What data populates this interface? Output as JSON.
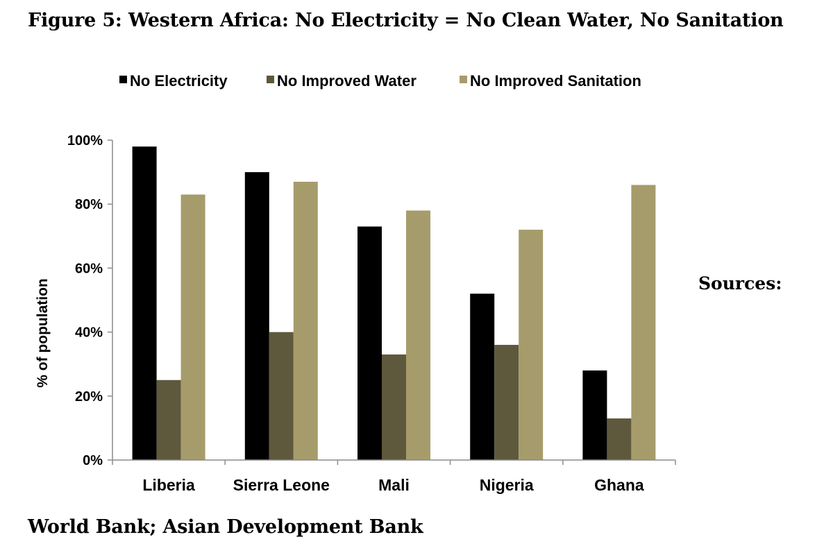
{
  "figure": {
    "title": "Figure 5: Western Africa: No Electricity = No Clean Water, No Sanitation",
    "sources_label": "Sources:",
    "sources_text": "World Bank; Asian Development Bank"
  },
  "chart_data": {
    "type": "bar",
    "title": "",
    "xlabel": "",
    "ylabel": "% of population",
    "ylim": [
      0,
      100
    ],
    "yticks": [
      0,
      20,
      40,
      60,
      80,
      100
    ],
    "ytick_labels": [
      "0%",
      "20%",
      "40%",
      "60%",
      "80%",
      "100%"
    ],
    "grid": false,
    "legend_position": "top",
    "categories": [
      "Liberia",
      "Sierra Leone",
      "Mali",
      "Nigeria",
      "Ghana"
    ],
    "series": [
      {
        "name": "No Electricity",
        "color": "#000000",
        "values": [
          98,
          90,
          73,
          52,
          28
        ]
      },
      {
        "name": "No Improved Water",
        "color": "#5e583d",
        "values": [
          25,
          40,
          33,
          36,
          13
        ]
      },
      {
        "name": "No Improved Sanitation",
        "color": "#a69c6b",
        "values": [
          83,
          87,
          78,
          72,
          86
        ]
      }
    ]
  }
}
